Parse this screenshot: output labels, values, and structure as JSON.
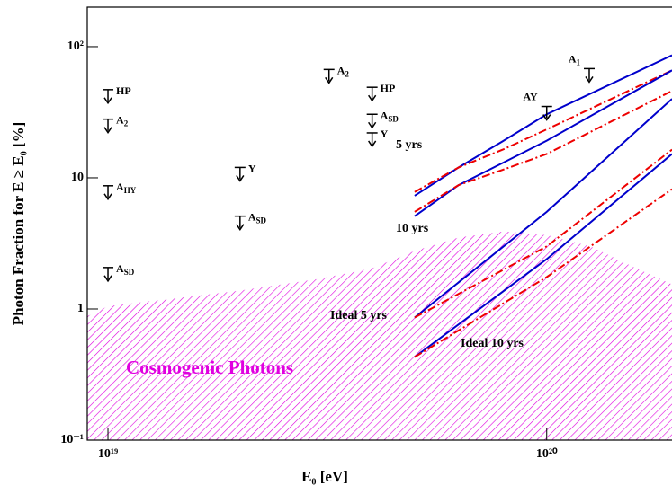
{
  "chart_data": {
    "type": "log-limits",
    "x_label": "E₀ [eV]",
    "y_label": "Photon Fraction for E ≥ E₀ [%]",
    "xlim": [
      8.97e+18,
      1.93e+20
    ],
    "ylim": [
      0.1,
      200
    ],
    "log_x": true,
    "log_y": true,
    "xticks": [
      {
        "value": 1e+19,
        "label": "10¹⁹"
      },
      {
        "value": 1e+20,
        "label": "10²⁰"
      }
    ],
    "yticks": [
      {
        "value": 0.1,
        "label": "10⁻¹"
      },
      1,
      10,
      {
        "value": 100,
        "label": "10²"
      }
    ],
    "limits": [
      {
        "x": 1e+19,
        "y": 47,
        "label": "HP",
        "side": "right"
      },
      {
        "x": 1e+19,
        "y": 28,
        "label": "A",
        "sub": "2",
        "side": "right"
      },
      {
        "x": 1e+19,
        "y": 8.7,
        "label": "A",
        "sub": "HY",
        "side": "right"
      },
      {
        "x": 1e+19,
        "y": 2.07,
        "label": "A",
        "sub": "SD",
        "side": "right"
      },
      {
        "x": 2e+19,
        "y": 12,
        "label": "Y",
        "side": "right"
      },
      {
        "x": 2e+19,
        "y": 5.1,
        "label": "A",
        "sub": "SD",
        "side": "right"
      },
      {
        "x": 3.19e+19,
        "y": 67,
        "label": "A",
        "sub": "2",
        "side": "right"
      },
      {
        "x": 4e+19,
        "y": 49,
        "label": "HP",
        "side": "right"
      },
      {
        "x": 4e+19,
        "y": 30.5,
        "label": "A",
        "sub": "SD",
        "side": "right"
      },
      {
        "x": 4e+19,
        "y": 22,
        "label": "Y",
        "side": "right"
      },
      {
        "x": 1e+20,
        "y": 35,
        "label": "AY",
        "side": "left"
      },
      {
        "x": 1.25e+20,
        "y": 68,
        "label": "A",
        "sub": "1",
        "side": "left"
      }
    ],
    "curves": [
      {
        "name": "5 yrs",
        "lines": [
          {
            "color": "#0000cc",
            "style": "solid",
            "x": [
              5e+19,
              6.3e+19,
              7.94e+19,
              1e+20,
              1.93e+20
            ],
            "values": [
              7.3,
              12,
              19,
              30.5,
              86
            ]
          },
          {
            "color": "#ee0000",
            "style": "dashdot",
            "x": [
              5e+19,
              6.3e+19,
              7.94e+19,
              1e+20,
              1.93e+20
            ],
            "values": [
              7.8,
              12,
              16.4,
              23.4,
              66
            ]
          }
        ]
      },
      {
        "name": "10 yrs",
        "lines": [
          {
            "color": "#0000cc",
            "style": "solid",
            "x": [
              5e+19,
              6.3e+19,
              7.94e+19,
              1e+20,
              1.93e+20
            ],
            "values": [
              5.1,
              8.8,
              13,
              19.2,
              66
            ]
          },
          {
            "color": "#ee0000",
            "style": "dashdot",
            "x": [
              5e+19,
              6.3e+19,
              7.94e+19,
              1e+20,
              1.93e+20
            ],
            "values": [
              5.5,
              8.8,
              11.5,
              15.2,
              46
            ]
          }
        ]
      },
      {
        "name": "Ideal 5 yrs",
        "lines": [
          {
            "color": "#0000cc",
            "style": "solid",
            "x": [
              5e+19,
              1e+20,
              1.93e+20
            ],
            "values": [
              0.86,
              5.5,
              40
            ]
          },
          {
            "color": "#ee0000",
            "style": "dashdot",
            "x": [
              5e+19,
              1e+20,
              1.93e+20
            ],
            "values": [
              0.86,
              3,
              16.4
            ]
          }
        ]
      },
      {
        "name": "Ideal 10 yrs",
        "lines": [
          {
            "color": "#0000cc",
            "style": "solid",
            "x": [
              5e+19,
              1e+20,
              1.93e+20
            ],
            "values": [
              0.43,
              2.4,
              15.2
            ]
          },
          {
            "color": "#ee0000",
            "style": "dashdot",
            "x": [
              5e+19,
              1e+20,
              1.93e+20
            ],
            "values": [
              0.43,
              1.75,
              8.2
            ]
          }
        ]
      }
    ],
    "band": {
      "name": "Cosmogenic Photons",
      "color": "#e000e0",
      "x": [
        8.97e+18,
        1e+19,
        2e+19,
        3e+19,
        4e+19,
        5e+19,
        6.3e+19,
        8e+19,
        1e+20,
        1.26e+20,
        1.6e+20,
        1.93e+20
      ],
      "values": [
        0.88,
        1.05,
        1.38,
        1.69,
        2.04,
        2.77,
        3.5,
        3.9,
        3.66,
        3.0,
        2.04,
        1.54
      ]
    }
  }
}
